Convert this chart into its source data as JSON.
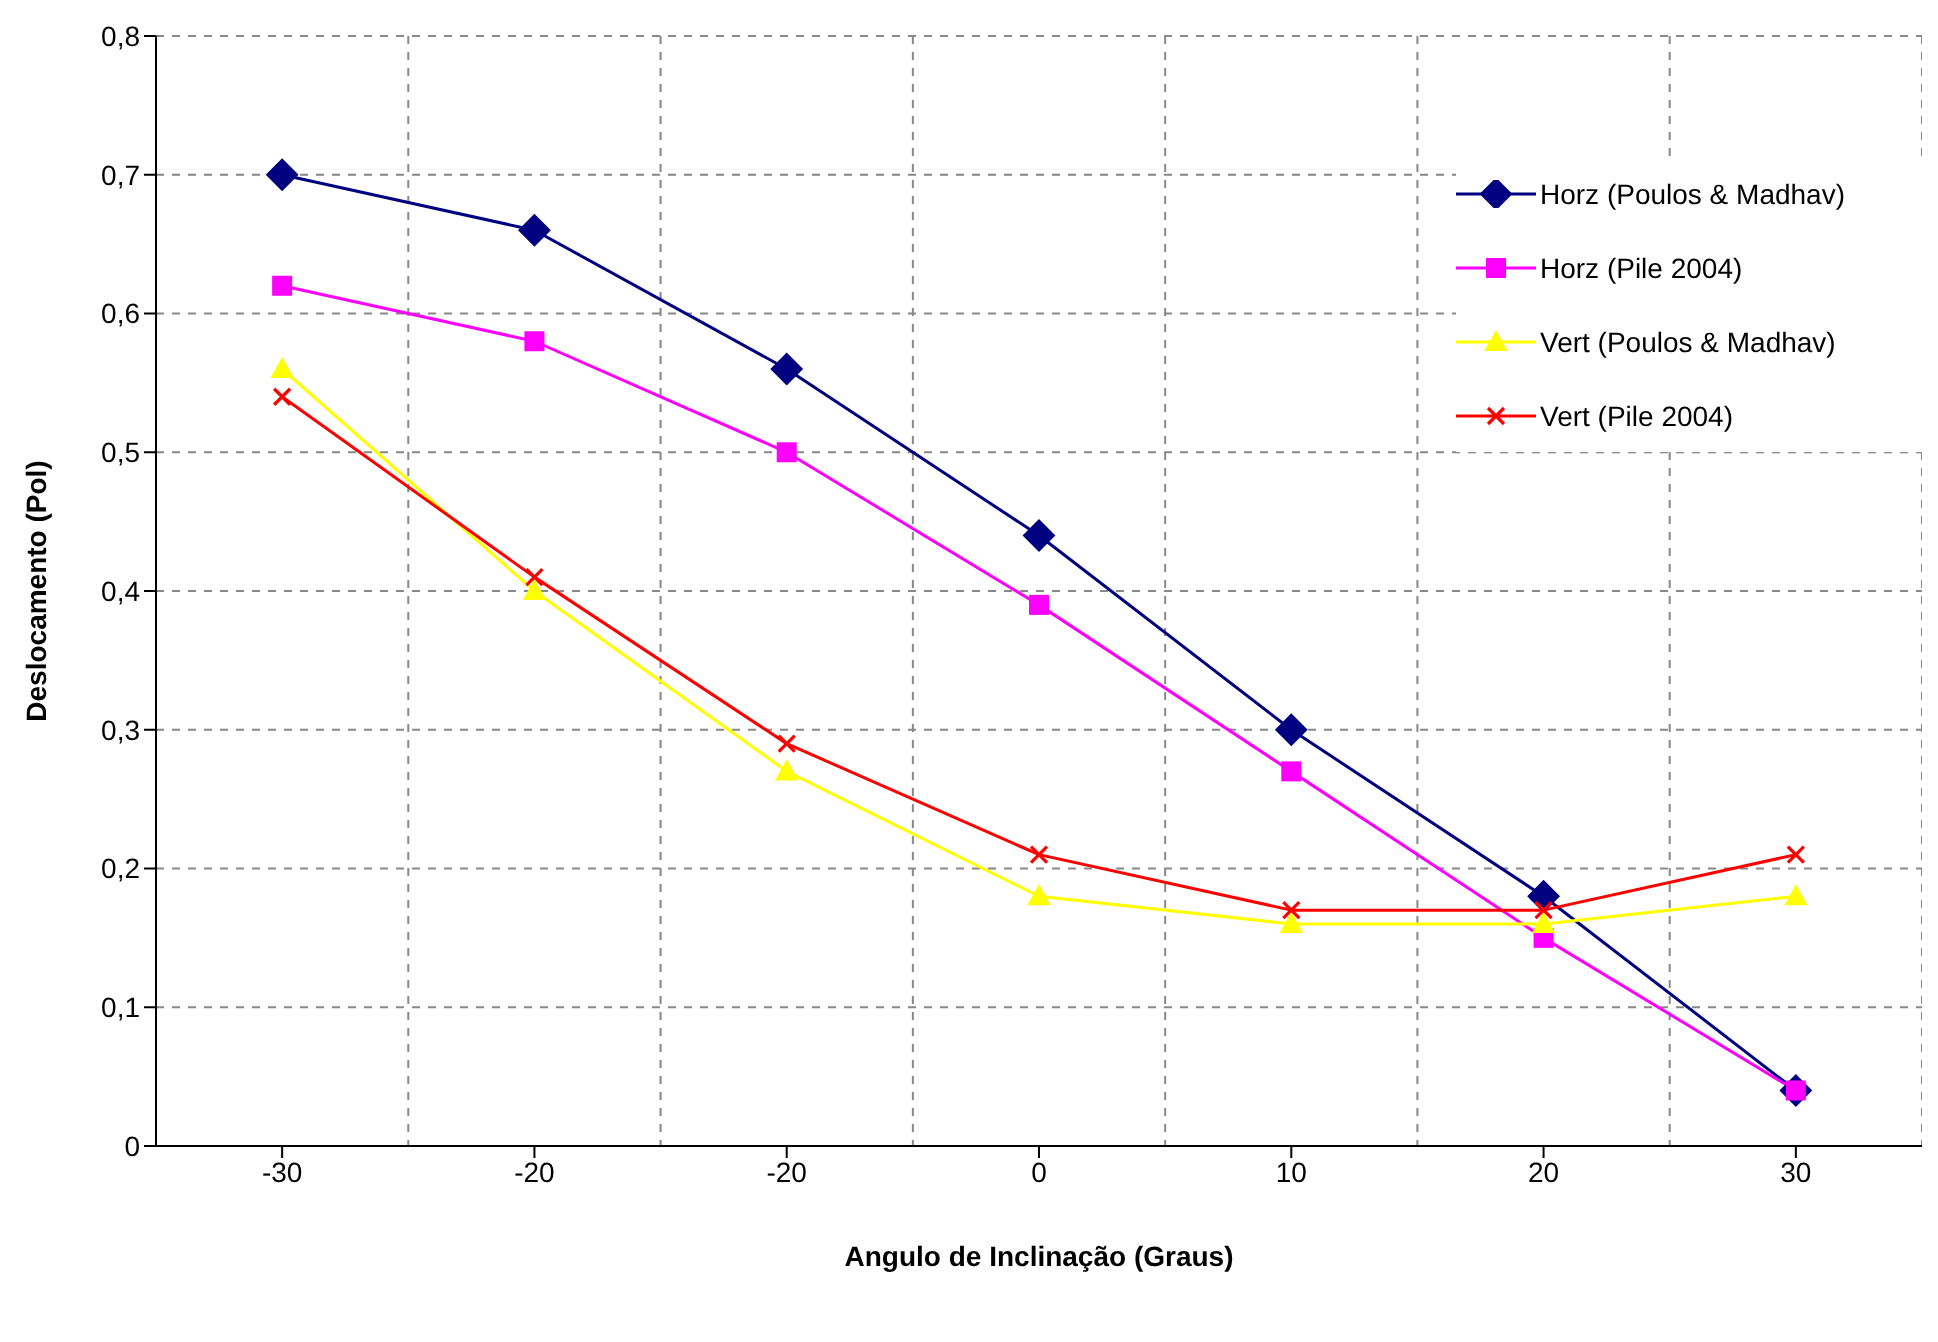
{
  "chart_data": {
    "type": "line",
    "xlabel": "Angulo de Inclinação (Graus)",
    "ylabel": "Deslocamento (Pol)",
    "categories": [
      "-30",
      "-20",
      "-20",
      "0",
      "10",
      "20",
      "30"
    ],
    "series": [
      {
        "name": "Horz (Poulos & Madhav)",
        "color": "#000080",
        "marker": "diamond",
        "values": [
          0.7,
          0.66,
          0.56,
          0.44,
          0.3,
          0.18,
          0.04
        ]
      },
      {
        "name": "Horz (Pile 2004)",
        "color": "#ff00ff",
        "marker": "square",
        "values": [
          0.62,
          0.58,
          0.5,
          0.39,
          0.27,
          0.15,
          0.04
        ]
      },
      {
        "name": "Vert (Poulos & Madhav)",
        "color": "#ffff00",
        "marker": "triangle",
        "values": [
          0.56,
          0.4,
          0.27,
          0.18,
          0.16,
          0.16,
          0.18
        ]
      },
      {
        "name": "Vert (Pile 2004)",
        "color": "#ff0000",
        "marker": "cross",
        "values": [
          0.54,
          0.41,
          0.29,
          0.21,
          0.17,
          0.17,
          0.21
        ]
      }
    ],
    "ylim": [
      0,
      0.8
    ],
    "yticks": [
      0,
      {
        "value": 0.1,
        "label": "0,1"
      },
      {
        "value": 0.2,
        "label": "0,2"
      },
      {
        "value": 0.3,
        "label": "0,3"
      },
      {
        "value": 0.4,
        "label": "0,4"
      },
      {
        "value": 0.5,
        "label": "0,5"
      },
      {
        "value": 0.6,
        "label": "0,6"
      },
      {
        "value": 0.7,
        "label": "0,7"
      },
      {
        "value": 0.8,
        "label": "0,8"
      }
    ],
    "grid": true,
    "legend": "top right",
    "line_style": "solid"
  }
}
